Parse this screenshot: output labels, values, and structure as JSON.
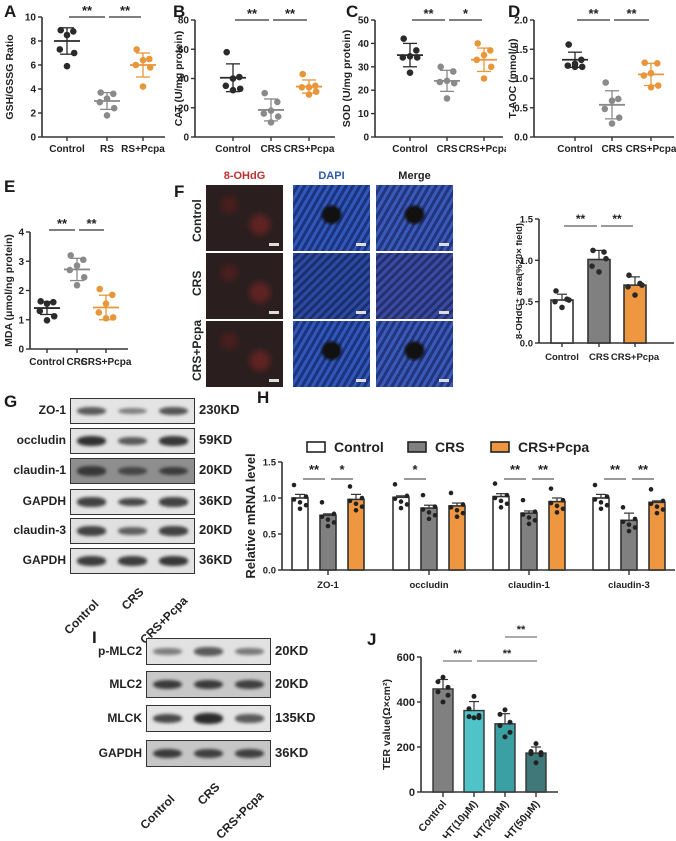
{
  "panels": {
    "A": {
      "letter": "A"
    },
    "B": {
      "letter": "B"
    },
    "C": {
      "letter": "C"
    },
    "D": {
      "letter": "D"
    },
    "E": {
      "letter": "E"
    },
    "F": {
      "letter": "F",
      "headers": [
        "8-OHdG",
        "DAPI",
        "Merge"
      ],
      "rows": [
        "Control",
        "CRS",
        "CRS+Pcpa"
      ]
    },
    "G": {
      "letter": "G",
      "proteins": [
        "ZO-1",
        "occludin",
        "claudin-1",
        "GAPDH",
        "claudin-3",
        "GAPDH"
      ],
      "kd": [
        "230KD",
        "59KD",
        "20KD",
        "36KD",
        "20KD",
        "36KD"
      ],
      "lanes": [
        "Control",
        "CRS",
        "CRS+Pcpa"
      ]
    },
    "H": {
      "letter": "H"
    },
    "I": {
      "letter": "I",
      "proteins": [
        "p-MLC2",
        "MLC2",
        "MLCK",
        "GAPDH"
      ],
      "kd": [
        "20KD",
        "20KD",
        "135KD",
        "36KD"
      ],
      "lanes": [
        "Control",
        "CRS",
        "CRS+Pcpa"
      ]
    },
    "J": {
      "letter": "J"
    }
  },
  "colors": {
    "control": "#2a2a2a",
    "crs": "#8a8a8a",
    "pcpa": "#e8963a",
    "bar_control": "#ffffff",
    "bar_crs": "#808080",
    "bar_pcpa": "#ee9640",
    "teal1": "#4fc3c8",
    "teal2": "#3aa0a4",
    "teal3": "#3e7878"
  },
  "chart_data": [
    {
      "panel": "A",
      "type": "scatter",
      "ylabel": "GSH/GSSG Ratio",
      "categories": [
        "Control",
        "RS",
        "RS+Pcpa"
      ],
      "ylim": [
        0,
        10
      ],
      "yticks": [
        0,
        2,
        4,
        6,
        8,
        10
      ],
      "means": [
        8.0,
        3.0,
        6.0
      ],
      "sd": [
        1.1,
        0.7,
        1.0
      ],
      "points": [
        [
          8.9,
          8.8,
          8.5,
          7.3,
          7.0,
          5.9
        ],
        [
          3.7,
          3.6,
          3.2,
          2.9,
          2.4,
          1.8
        ],
        [
          7.3,
          6.5,
          6.4,
          6.0,
          5.8,
          4.2
        ]
      ],
      "significance": [
        {
          "from": 0,
          "to": 1,
          "label": "**"
        },
        {
          "from": 1,
          "to": 2,
          "label": "**"
        }
      ]
    },
    {
      "panel": "B",
      "type": "scatter",
      "ylabel": "CAT (U/mg protein)",
      "categories": [
        "Control",
        "CRS",
        "CRS+Pcpa"
      ],
      "ylim": [
        0,
        80
      ],
      "yticks": [
        0,
        20,
        40,
        60,
        80
      ],
      "means": [
        40.5,
        18.5,
        34.5
      ],
      "sd": [
        9.5,
        7.5,
        4.5
      ],
      "points": [
        [
          58,
          41,
          40,
          35,
          33,
          32
        ],
        [
          30,
          24,
          18,
          16,
          14,
          10
        ],
        [
          43,
          35,
          34,
          34,
          31,
          29
        ]
      ],
      "significance": [
        {
          "from": 0,
          "to": 1,
          "label": "**"
        },
        {
          "from": 1,
          "to": 2,
          "label": "**"
        }
      ]
    },
    {
      "panel": "C",
      "type": "scatter",
      "ylabel": "SOD (U/mg protein)",
      "categories": [
        "Control",
        "CRS",
        "CRS+Pcpa"
      ],
      "ylim": [
        0,
        50
      ],
      "yticks": [
        0,
        10,
        20,
        30,
        40,
        50
      ],
      "means": [
        35,
        24,
        33
      ],
      "sd": [
        5,
        4.5,
        5
      ],
      "points": [
        [
          42,
          37,
          34.5,
          34,
          34,
          27.5
        ],
        [
          30,
          28,
          24,
          23.5,
          23,
          16.5
        ],
        [
          40,
          37,
          35,
          33,
          30,
          25
        ]
      ],
      "significance": [
        {
          "from": 0,
          "to": 1,
          "label": "**"
        },
        {
          "from": 1,
          "to": 2,
          "label": "*"
        }
      ]
    },
    {
      "panel": "D",
      "type": "scatter",
      "ylabel": "T-AOC (mmol/g)",
      "categories": [
        "Control",
        "CRS",
        "CRS+Pcpa"
      ],
      "ylim": [
        0,
        2.0
      ],
      "yticks": [
        0.0,
        0.5,
        1.0,
        1.5,
        2.0
      ],
      "means": [
        1.32,
        0.55,
        1.07
      ],
      "sd": [
        0.13,
        0.24,
        0.19
      ],
      "points": [
        [
          1.58,
          1.32,
          1.25,
          1.22,
          1.2,
          1.2
        ],
        [
          0.93,
          0.65,
          0.62,
          0.48,
          0.33,
          0.23
        ],
        [
          1.27,
          1.26,
          1.09,
          1.05,
          0.88,
          0.85
        ]
      ],
      "significance": [
        {
          "from": 0,
          "to": 1,
          "label": "**"
        },
        {
          "from": 1,
          "to": 2,
          "label": "**"
        }
      ]
    },
    {
      "panel": "E",
      "type": "scatter",
      "ylabel": "MDA  (μmol/ng protein)",
      "categories": [
        "Control",
        "CRS",
        "CRS+Pcpa"
      ],
      "ylim": [
        0,
        4
      ],
      "yticks": [
        0,
        1,
        2,
        3,
        4
      ],
      "means": [
        1.4,
        2.72,
        1.42
      ],
      "sd": [
        0.22,
        0.38,
        0.42
      ],
      "points": [
        [
          1.63,
          1.6,
          1.55,
          1.3,
          1.12,
          0.98
        ],
        [
          3.2,
          3.05,
          2.85,
          2.7,
          2.45,
          2.18
        ],
        [
          2.05,
          1.85,
          1.55,
          1.25,
          1.08,
          1.05
        ]
      ],
      "significance": [
        {
          "from": 0,
          "to": 1,
          "label": "**"
        },
        {
          "from": 1,
          "to": 2,
          "label": "**"
        }
      ]
    },
    {
      "panel": "F",
      "type": "bar",
      "ylabel": "8-OHdG⁺ area(%20× field)",
      "categories": [
        "Control",
        "CRS",
        "CRS+Pcpa"
      ],
      "ylim": [
        0,
        1.5
      ],
      "yticks": [
        0.0,
        0.5,
        1.0,
        1.5
      ],
      "values": [
        0.52,
        1.01,
        0.7
      ],
      "sd": [
        0.07,
        0.11,
        0.1
      ],
      "points": [
        [
          0.63,
          0.53,
          0.52,
          0.5,
          0.43
        ],
        [
          1.12,
          1.1,
          1.02,
          0.93,
          0.86
        ],
        [
          0.82,
          0.72,
          0.7,
          0.68,
          0.58
        ]
      ],
      "significance": [
        {
          "from": 0,
          "to": 1,
          "label": "**"
        },
        {
          "from": 1,
          "to": 2,
          "label": "**"
        }
      ]
    },
    {
      "panel": "H",
      "type": "bar",
      "ylabel": "Relative mRNA level",
      "categories": [
        "ZO-1",
        "occludin",
        "claudin-1",
        "claudin-3"
      ],
      "ylim": [
        0,
        1.5
      ],
      "yticks": [
        0.0,
        0.5,
        1.0,
        1.5
      ],
      "legend": [
        "Control",
        "CRS",
        "CRS+Pcpa"
      ],
      "legend_position": "top",
      "series": [
        {
          "name": "Control",
          "values": [
            1.0,
            1.01,
            1.02,
            1.0
          ],
          "sem": [
            0.05,
            0.02,
            0.04,
            0.05
          ]
        },
        {
          "name": "CRS",
          "values": [
            0.76,
            0.86,
            0.79,
            0.69
          ],
          "sem": [
            0.02,
            0.04,
            0.03,
            0.1
          ]
        },
        {
          "name": "CRS+Pcpa",
          "values": [
            0.98,
            0.89,
            0.95,
            0.94
          ],
          "sem": [
            0.07,
            0.04,
            0.05,
            0.02
          ]
        }
      ],
      "significance": [
        {
          "group": 0,
          "pair": "Control-CRS",
          "label": "**"
        },
        {
          "group": 0,
          "pair": "CRS-CRS+Pcpa",
          "label": "*"
        },
        {
          "group": 1,
          "pair": "Control-CRS",
          "label": "*"
        },
        {
          "group": 2,
          "pair": "Control-CRS",
          "label": "**"
        },
        {
          "group": 2,
          "pair": "CRS-CRS+Pcpa",
          "label": "**"
        },
        {
          "group": 3,
          "pair": "Control-CRS",
          "label": "**"
        },
        {
          "group": 3,
          "pair": "CRS-CRS+Pcpa",
          "label": "**"
        }
      ]
    },
    {
      "panel": "J",
      "type": "bar",
      "ylabel": "TER value(Ω×cm²)",
      "categories": [
        "Control",
        "5-HT(10μM)",
        "5-HT(20μM)",
        "5-HT(50μM)"
      ],
      "ylim": [
        0,
        600
      ],
      "yticks": [
        0,
        200,
        400,
        600
      ],
      "values": [
        458,
        362,
        303,
        173
      ],
      "sd": [
        42,
        40,
        45,
        27
      ],
      "points": [
        [
          510,
          490,
          465,
          445,
          430,
          400
        ],
        [
          425,
          370,
          340,
          335,
          330,
          330
        ],
        [
          365,
          345,
          310,
          295,
          265,
          245
        ],
        [
          215,
          180,
          175,
          170,
          165,
          130
        ]
      ],
      "significance": [
        {
          "from": 0,
          "to": 1,
          "label": "**"
        },
        {
          "from": 1,
          "to": 3,
          "label": "**"
        },
        {
          "from": 2,
          "to": 3,
          "label": "**"
        }
      ]
    }
  ]
}
